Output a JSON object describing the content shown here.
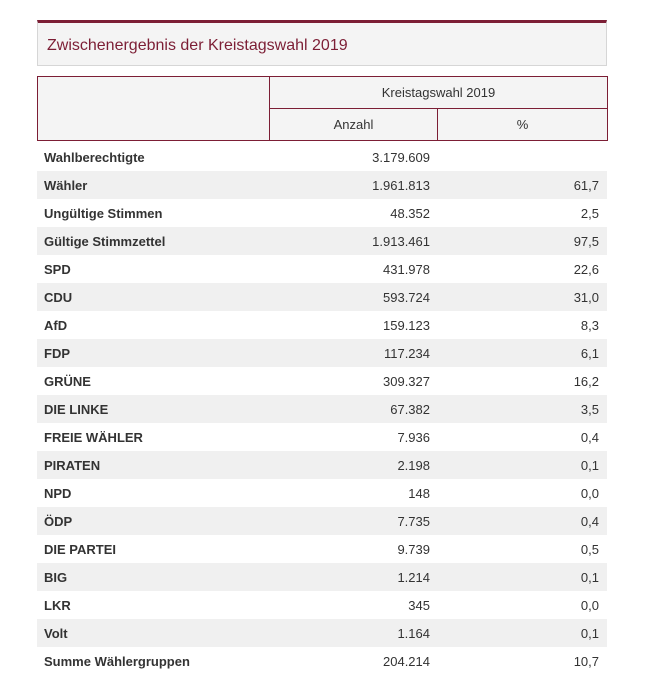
{
  "title": "Zwischenergebnis der Kreistagswahl 2019",
  "header": {
    "group_label": "Kreistagswahl 2019",
    "col_count": "Anzahl",
    "col_pct": "%"
  },
  "rows": [
    {
      "label": "Wahlberechtigte",
      "count": "3.179.609",
      "pct": ""
    },
    {
      "label": "Wähler",
      "count": "1.961.813",
      "pct": "61,7"
    },
    {
      "label": "Ungültige Stimmen",
      "count": "48.352",
      "pct": "2,5"
    },
    {
      "label": "Gültige Stimmzettel",
      "count": "1.913.461",
      "pct": "97,5"
    },
    {
      "label": "SPD",
      "count": "431.978",
      "pct": "22,6"
    },
    {
      "label": "CDU",
      "count": "593.724",
      "pct": "31,0"
    },
    {
      "label": "AfD",
      "count": "159.123",
      "pct": "8,3"
    },
    {
      "label": "FDP",
      "count": "117.234",
      "pct": "6,1"
    },
    {
      "label": "GRÜNE",
      "count": "309.327",
      "pct": "16,2"
    },
    {
      "label": "DIE LINKE",
      "count": "67.382",
      "pct": "3,5"
    },
    {
      "label": "FREIE WÄHLER",
      "count": "7.936",
      "pct": "0,4"
    },
    {
      "label": "PIRATEN",
      "count": "2.198",
      "pct": "0,1"
    },
    {
      "label": "NPD",
      "count": "148",
      "pct": "0,0"
    },
    {
      "label": "ÖDP",
      "count": "7.735",
      "pct": "0,4"
    },
    {
      "label": "DIE PARTEI",
      "count": "9.739",
      "pct": "0,5"
    },
    {
      "label": "BIG",
      "count": "1.214",
      "pct": "0,1"
    },
    {
      "label": "LKR",
      "count": "345",
      "pct": "0,0"
    },
    {
      "label": "Volt",
      "count": "1.164",
      "pct": "0,1"
    },
    {
      "label": "Summe Wählergruppen",
      "count": "204.214",
      "pct": "10,7"
    }
  ],
  "colors": {
    "accent": "#7c1e35",
    "header_bg": "#f4f4f4",
    "row_alt_bg": "#f0f0f0"
  }
}
